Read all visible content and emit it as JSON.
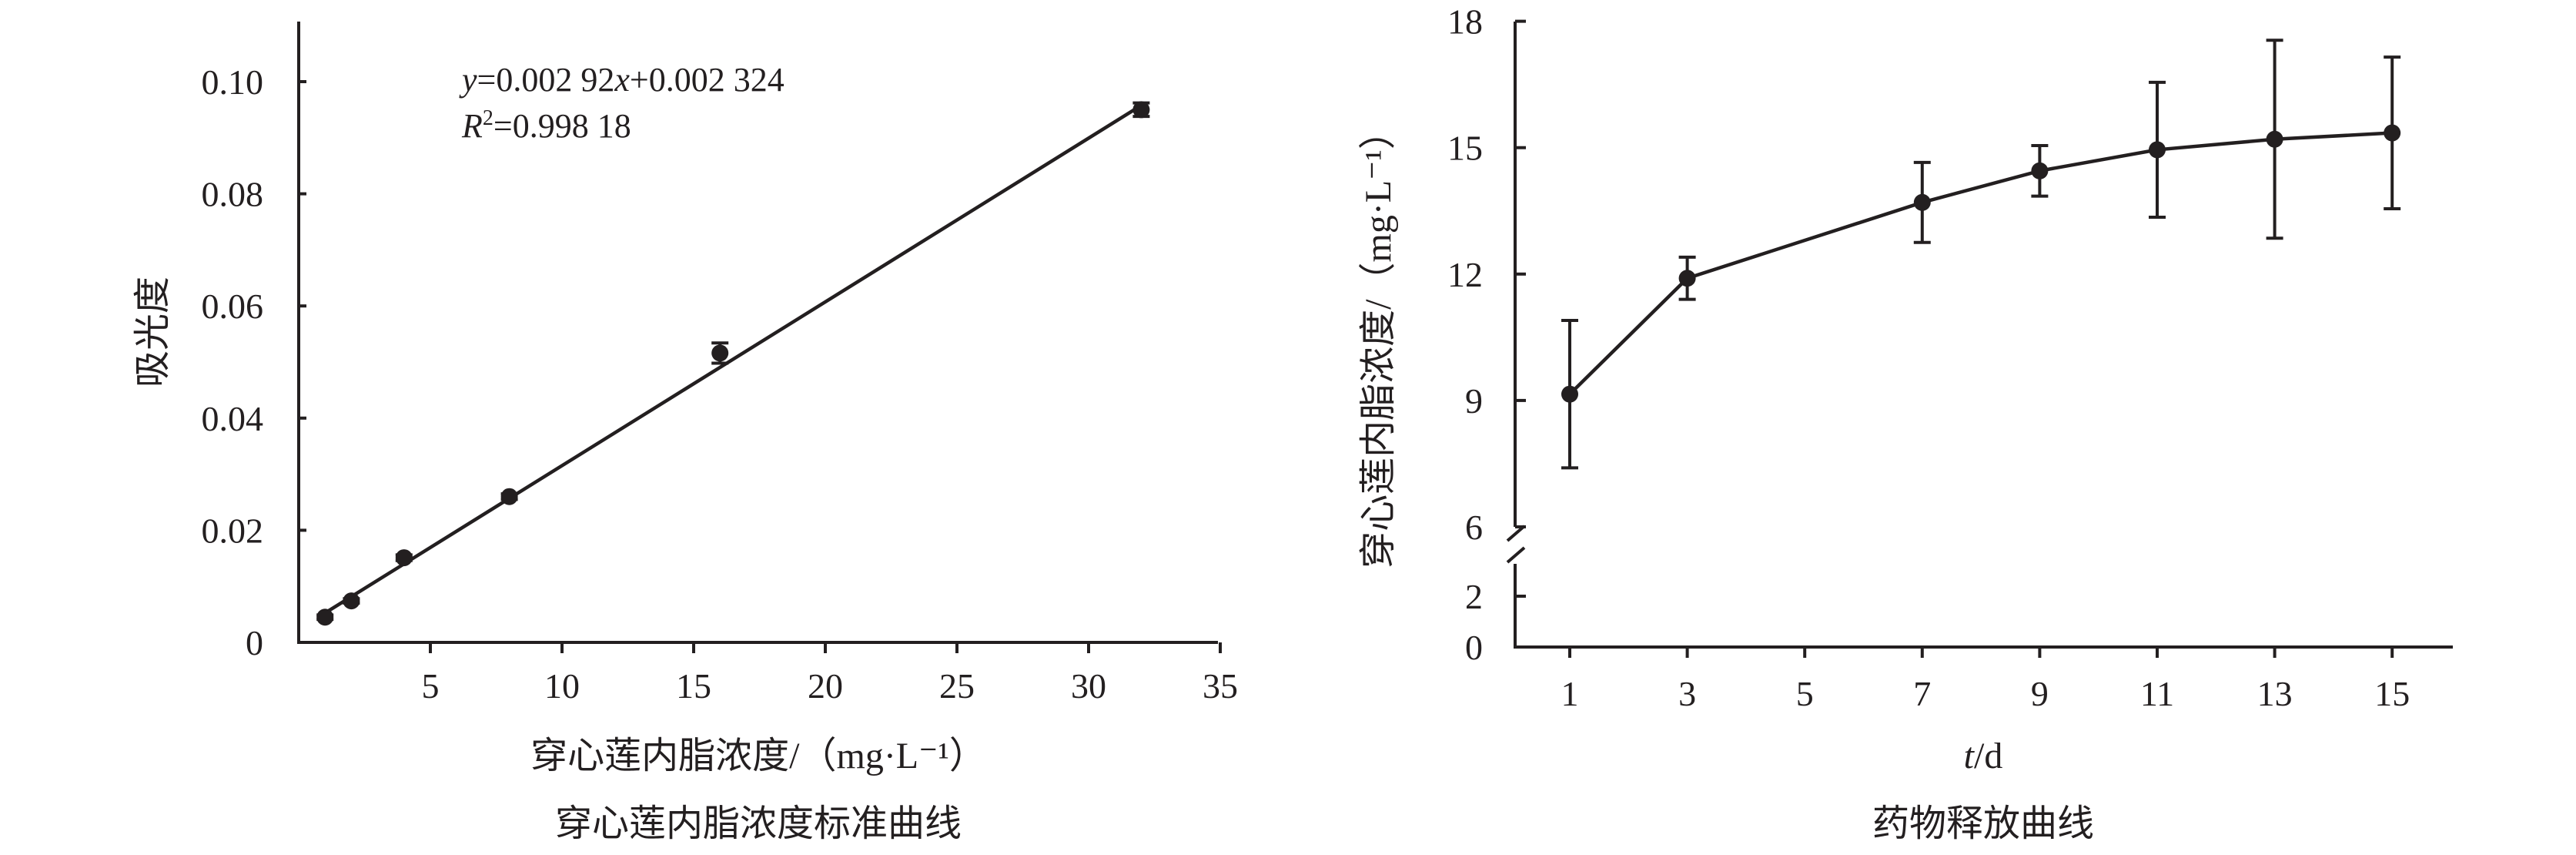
{
  "chart_data": [
    {
      "type": "scatter",
      "title": "穿心莲内脂浓度标准曲线",
      "xlabel": "穿心莲内脂浓度/（mg·L⁻¹）",
      "ylabel": "吸光度",
      "xlim": [
        0,
        35
      ],
      "ylim": [
        0,
        0.11
      ],
      "xticks": [
        5,
        10,
        15,
        20,
        25,
        30,
        35
      ],
      "xtick_labels": [
        "5",
        "10",
        "15",
        "20",
        "25",
        "30",
        "35"
      ],
      "yticks": [
        0,
        0.02,
        0.04,
        0.06,
        0.08,
        0.1
      ],
      "ytick_labels": [
        "0",
        "0.02",
        "0.04",
        "0.06",
        "0.08",
        "0.10"
      ],
      "points": [
        {
          "x": 1,
          "y": 0.0045,
          "err": 0.0004
        },
        {
          "x": 2,
          "y": 0.0074,
          "err": 0.0004
        },
        {
          "x": 4,
          "y": 0.0151,
          "err": 0.0005
        },
        {
          "x": 8,
          "y": 0.026,
          "err": 0.0005
        },
        {
          "x": 16,
          "y": 0.0516,
          "err": 0.0018
        },
        {
          "x": 32,
          "y": 0.095,
          "err": 0.0012
        }
      ],
      "trendline": {
        "slope": 0.00292,
        "intercept": 0.002324,
        "x_range": [
          1,
          32
        ]
      },
      "equation": {
        "y_var": "y",
        "eq_mid": "=0.002 92",
        "x_var": "x",
        "eq_tail": "+0.002 324"
      },
      "r2": {
        "var": "R",
        "sup": "2",
        "value": "=0.998 18"
      },
      "grid": false
    },
    {
      "type": "line",
      "title": "药物释放曲线",
      "xlabel_var": "t",
      "xlabel_unit": "/d",
      "ylabel": "穿心莲内脂浓度/（mg·L⁻¹）",
      "ylim": [
        0,
        18
      ],
      "axis_break": {
        "between": [
          2,
          6
        ]
      },
      "xticks": [
        1,
        3,
        5,
        7,
        9,
        11,
        13,
        15
      ],
      "xtick_labels": [
        "1",
        "3",
        "5",
        "7",
        "9",
        "11",
        "13",
        "15"
      ],
      "yticks": [
        0,
        2,
        6,
        9,
        12,
        15,
        18
      ],
      "ytick_labels": [
        "0",
        "2",
        "6",
        "9",
        "12",
        "15",
        "18"
      ],
      "points": [
        {
          "x": 1,
          "y": 9.15,
          "err": 1.75
        },
        {
          "x": 3,
          "y": 11.9,
          "err": 0.5
        },
        {
          "x": 7,
          "y": 13.7,
          "err": 0.95
        },
        {
          "x": 9,
          "y": 14.45,
          "err": 0.6
        },
        {
          "x": 11,
          "y": 14.95,
          "err": 1.6
        },
        {
          "x": 13,
          "y": 15.2,
          "err": 2.35
        },
        {
          "x": 15,
          "y": 15.35,
          "err": 1.8
        }
      ],
      "grid": false
    }
  ]
}
